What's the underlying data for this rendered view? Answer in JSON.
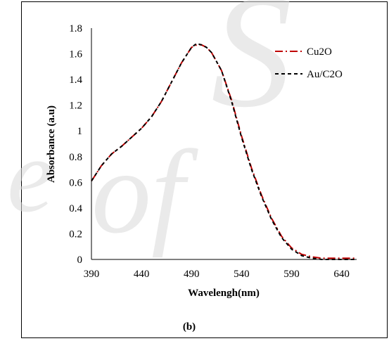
{
  "chart_data": {
    "type": "line",
    "title": "",
    "xlabel": "Wavelengh(nm)",
    "ylabel": "Absorbance (a.u)",
    "xlim": [
      390,
      655
    ],
    "ylim": [
      0,
      1.8
    ],
    "xticks": [
      "390",
      "440",
      "490",
      "540",
      "590",
      "640"
    ],
    "xtick_values": [
      390,
      440,
      490,
      540,
      590,
      640
    ],
    "yticks": [
      "0",
      "0.2",
      "0.4",
      "0.6",
      "0.8",
      "1",
      "1.2",
      "1.4",
      "1.6",
      "1.8"
    ],
    "ytick_values": [
      0,
      0.2,
      0.4,
      0.6,
      0.8,
      1.0,
      1.2,
      1.4,
      1.6,
      1.8
    ],
    "grid": false,
    "legend_position": "top-right",
    "caption": "(b)",
    "series": [
      {
        "name": "Cu2O",
        "color": "#c00000",
        "dash": "dash-dot",
        "x": [
          390,
          400,
          410,
          420,
          430,
          440,
          450,
          460,
          470,
          480,
          490,
          495,
          500,
          505,
          510,
          520,
          530,
          540,
          550,
          560,
          570,
          580,
          590,
          600,
          610,
          620,
          630,
          640,
          655
        ],
        "y": [
          0.61,
          0.73,
          0.82,
          0.88,
          0.95,
          1.02,
          1.11,
          1.23,
          1.38,
          1.53,
          1.65,
          1.67,
          1.67,
          1.65,
          1.61,
          1.47,
          1.24,
          0.96,
          0.71,
          0.5,
          0.32,
          0.18,
          0.09,
          0.04,
          0.02,
          0.01,
          0.01,
          0.01,
          0.01
        ]
      },
      {
        "name": "Au/C2O",
        "color": "#000000",
        "dash": "dashed",
        "x": [
          390,
          400,
          410,
          420,
          430,
          440,
          450,
          460,
          470,
          480,
          490,
          495,
          500,
          505,
          510,
          520,
          530,
          540,
          550,
          560,
          570,
          580,
          590,
          600,
          610,
          620,
          630,
          640,
          655
        ],
        "y": [
          0.61,
          0.73,
          0.82,
          0.88,
          0.95,
          1.02,
          1.11,
          1.23,
          1.38,
          1.53,
          1.65,
          1.68,
          1.67,
          1.65,
          1.61,
          1.47,
          1.23,
          0.95,
          0.7,
          0.49,
          0.31,
          0.17,
          0.08,
          0.03,
          0.01,
          0.0,
          0.0,
          0.0,
          0.0
        ]
      }
    ]
  }
}
